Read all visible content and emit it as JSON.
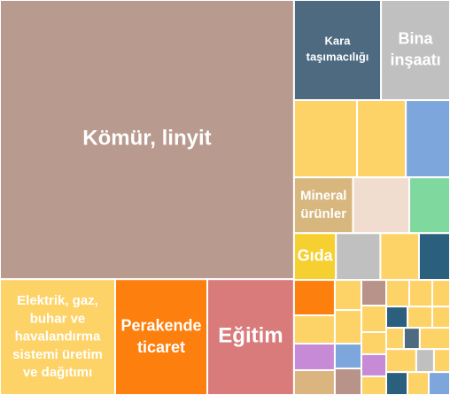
{
  "chart_data": {
    "type": "treemap",
    "children": [
      {
        "children": [
          {
            "name": "Kömür, linyit",
            "value": 104.6,
            "color": "#b89a8e"
          },
          {
            "children": [
              {
                "name": "Elektrik, gaz, buhar ve havalandırma sistemi üretim ve dağıtımı",
                "value": 17.0,
                "color": "#fdd367"
              },
              {
                "name": "Perakende ticaret",
                "value": 13.6,
                "color": "#fd7f0e"
              },
              {
                "name": "Eğitim",
                "value": 12.8,
                "color": "#d97b7b"
              }
            ]
          }
        ]
      },
      {
        "children": [
          {
            "children": [
              {
                "name": "Kara taşımacılığı",
                "value": 11.1,
                "color": "#4e6a80"
              },
              {
                "name": "Bina inşaatı",
                "value": 8.8,
                "color": "#c0c0c0"
              }
            ]
          },
          {
            "children": [
              {
                "value": 6.2,
                "color": "#fdd367"
              },
              {
                "value": 4.8,
                "color": "#fdd367"
              },
              {
                "value": 4.35,
                "color": "#7da7dc"
              }
            ]
          },
          {
            "children": [
              {
                "name": "Mineral ürünler",
                "value": 4.2,
                "color": "#d8b77f"
              },
              {
                "value": 4.0,
                "color": "#f0ddcf"
              },
              {
                "value": 2.9,
                "color": "#7fd99f"
              }
            ]
          },
          {
            "children": [
              {
                "name": "Gıda",
                "value": 2.5,
                "color": "#f5d030"
              },
              {
                "value": 2.65,
                "color": "#c0c0c0"
              },
              {
                "value": 2.3,
                "color": "#fdd367"
              },
              {
                "value": 1.85,
                "color": "#2a5f7d"
              }
            ]
          },
          {
            "children": [
              {
                "children": [
                  {
                    "value": 1.84,
                    "color": "#fd7f0e"
                  },
                  {
                    "value": 1.47,
                    "color": "#fdd367"
                  },
                  {
                    "value": 1.38,
                    "color": "#c78ad6"
                  },
                  {
                    "value": 1.29,
                    "color": "#dbb57f"
                  }
                ]
              },
              {
                "children": [
                  {
                    "value": 1.02,
                    "color": "#fdd367"
                  },
                  {
                    "value": 1.14,
                    "color": "#fdd367"
                  },
                  {
                    "value": 0.84,
                    "color": "#7da7dc"
                  },
                  {
                    "value": 0.9,
                    "color": "#b8938a"
                  }
                ]
              },
              {
                "children": [
                  {
                    "value": 0.81,
                    "color": "#b8938a"
                  },
                  {
                    "value": 0.84,
                    "color": "#fdd367"
                  },
                  {
                    "value": 0.7,
                    "color": "#fdd367"
                  },
                  {
                    "value": 0.7,
                    "color": "#c78ad6"
                  },
                  {
                    "value": 0.59,
                    "color": "#fdd367"
                  }
                ]
              },
              {
                "children": [
                  {
                    "children": [
                      {
                        "value": 0.78,
                        "color": "#fdd367"
                      },
                      {
                        "value": 0.78,
                        "color": "#fdd367"
                      },
                      {
                        "value": 0.6,
                        "color": "#fdd367"
                      }
                    ]
                  },
                  {
                    "children": [
                      {
                        "value": 0.58,
                        "color": "#2a5f7d"
                      },
                      {
                        "value": 0.67,
                        "color": "#fdd367"
                      },
                      {
                        "value": 0.48,
                        "color": "#fdd367"
                      }
                    ]
                  },
                  {
                    "children": [
                      {
                        "value": 0.48,
                        "color": "#fdd367"
                      },
                      {
                        "value": 0.43,
                        "color": "#4e6a80"
                      },
                      {
                        "value": 0.82,
                        "color": "#fdd367"
                      }
                    ]
                  },
                  {
                    "children": [
                      {
                        "value": 0.88,
                        "color": "#fdd367"
                      },
                      {
                        "value": 0.52,
                        "color": "#c0c0c0"
                      },
                      {
                        "value": 0.47,
                        "color": "#fdd367"
                      }
                    ]
                  },
                  {
                    "children": [
                      {
                        "value": 0.62,
                        "color": "#2a5f7d"
                      },
                      {
                        "value": 0.62,
                        "color": "#fdd367"
                      },
                      {
                        "value": 0.62,
                        "color": "#7da7dc"
                      }
                    ]
                  }
                ]
              }
            ]
          }
        ]
      }
    ]
  }
}
